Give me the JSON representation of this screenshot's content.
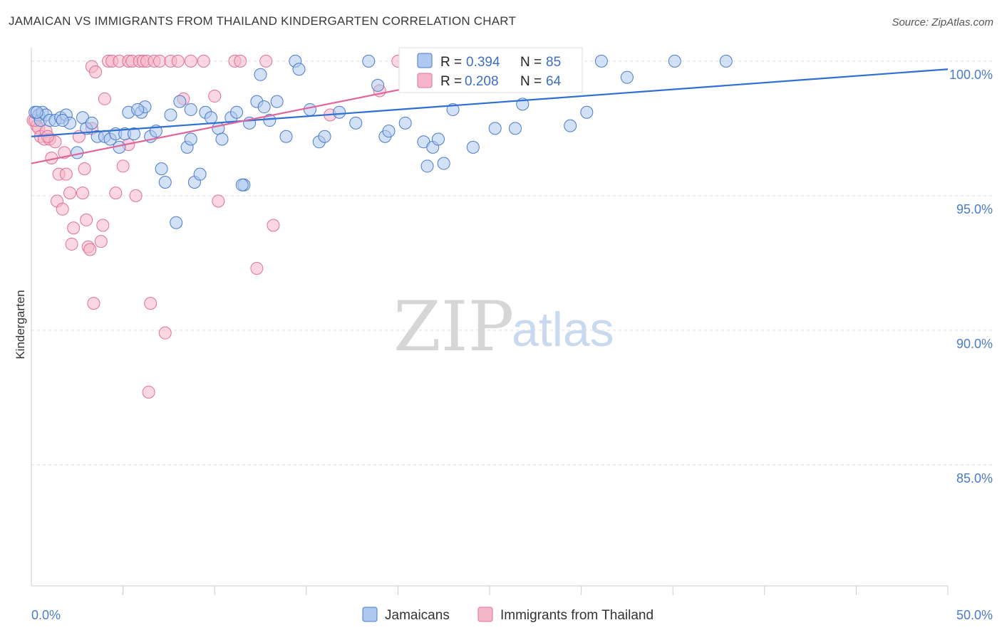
{
  "title": "JAMAICAN VS IMMIGRANTS FROM THAILAND KINDERGARTEN CORRELATION CHART",
  "source": "Source: ZipAtlas.com",
  "watermark": {
    "zip": "ZIP",
    "atlas": "atlas"
  },
  "colors": {
    "blue": "#4a7cc9",
    "blue_fill": "#aec8ef",
    "blue_line": "#2f6fd1",
    "pink": "#e0709a",
    "pink_fill": "#f6b6c9",
    "pink_line": "#e0659a",
    "grid": "#dddddd"
  },
  "legend": {
    "r_label": "R =",
    "n_label": "N =",
    "blue": {
      "r": "0.394",
      "n": "85"
    },
    "pink": {
      "r": "0.208",
      "n": "64"
    }
  },
  "chart_data": {
    "type": "scatter",
    "ylabel": "Kindergarten",
    "xlim": [
      0,
      50
    ],
    "ylim": [
      80.5,
      100.5
    ],
    "x_tick_labels": {
      "left": "0.0%",
      "right": "50.0%"
    },
    "y_ticks": [
      {
        "value": 100,
        "label": "100.0%"
      },
      {
        "value": 95,
        "label": "95.0%"
      },
      {
        "value": 90,
        "label": "90.0%"
      },
      {
        "value": 85,
        "label": "85.0%"
      }
    ],
    "grid": true,
    "series": [
      {
        "name": "Jamaicans",
        "color": "#4a7cc9",
        "trend": [
          [
            0,
            97.2
          ],
          [
            50,
            99.7
          ]
        ],
        "points": [
          [
            0.2,
            98.1
          ],
          [
            0.4,
            98.0
          ],
          [
            0.5,
            97.8
          ],
          [
            0.6,
            98.1
          ],
          [
            0.8,
            98.0
          ],
          [
            1.0,
            97.8
          ],
          [
            1.3,
            97.8
          ],
          [
            1.6,
            97.9
          ],
          [
            1.9,
            98.0
          ],
          [
            2.1,
            97.7
          ],
          [
            2.5,
            96.6
          ],
          [
            2.8,
            97.9
          ],
          [
            3.0,
            97.5
          ],
          [
            3.3,
            97.7
          ],
          [
            3.6,
            97.2
          ],
          [
            4.0,
            97.2
          ],
          [
            4.3,
            97.1
          ],
          [
            4.6,
            97.3
          ],
          [
            4.8,
            96.8
          ],
          [
            5.1,
            97.3
          ],
          [
            5.3,
            98.1
          ],
          [
            5.6,
            97.3
          ],
          [
            6.0,
            98.1
          ],
          [
            6.2,
            98.3
          ],
          [
            6.5,
            97.2
          ],
          [
            6.8,
            97.4
          ],
          [
            7.1,
            96.0
          ],
          [
            7.3,
            95.5
          ],
          [
            7.6,
            98.0
          ],
          [
            7.9,
            94.0
          ],
          [
            8.1,
            98.5
          ],
          [
            8.5,
            96.8
          ],
          [
            8.7,
            97.1
          ],
          [
            8.9,
            95.5
          ],
          [
            9.2,
            95.8
          ],
          [
            9.5,
            98.1
          ],
          [
            9.8,
            97.9
          ],
          [
            10.2,
            97.5
          ],
          [
            10.4,
            97.1
          ],
          [
            10.9,
            97.9
          ],
          [
            11.2,
            98.1
          ],
          [
            11.6,
            95.4
          ],
          [
            11.9,
            97.7
          ],
          [
            12.3,
            98.5
          ],
          [
            12.5,
            99.5
          ],
          [
            12.7,
            98.3
          ],
          [
            13.0,
            97.8
          ],
          [
            13.4,
            98.5
          ],
          [
            13.9,
            97.2
          ],
          [
            14.4,
            100.0
          ],
          [
            14.6,
            99.7
          ],
          [
            15.2,
            98.2
          ],
          [
            15.7,
            97.0
          ],
          [
            16.0,
            97.2
          ],
          [
            16.8,
            98.1
          ],
          [
            17.7,
            97.7
          ],
          [
            18.4,
            100.0
          ],
          [
            18.9,
            99.1
          ],
          [
            19.3,
            97.2
          ],
          [
            19.5,
            97.4
          ],
          [
            20.4,
            97.7
          ],
          [
            20.9,
            100.0
          ],
          [
            21.4,
            97.0
          ],
          [
            21.6,
            96.1
          ],
          [
            21.9,
            96.8
          ],
          [
            22.2,
            97.1
          ],
          [
            22.5,
            96.2
          ],
          [
            23.0,
            98.2
          ],
          [
            24.1,
            96.8
          ],
          [
            25.3,
            97.5
          ],
          [
            26.4,
            97.5
          ],
          [
            26.8,
            98.4
          ],
          [
            27.9,
            100.0
          ],
          [
            28.5,
            100.0
          ],
          [
            29.4,
            97.6
          ],
          [
            30.3,
            98.1
          ],
          [
            31.1,
            100.0
          ],
          [
            32.5,
            99.4
          ],
          [
            35.1,
            100.0
          ],
          [
            37.9,
            100.0
          ],
          [
            11.5,
            95.4
          ],
          [
            8.7,
            98.2
          ],
          [
            5.8,
            98.2
          ],
          [
            1.7,
            97.8
          ],
          [
            0.3,
            98.1
          ]
        ]
      },
      {
        "name": "Immigrants from Thailand",
        "color": "#e0709a",
        "trend": [
          [
            0,
            96.2
          ],
          [
            22,
            99.2
          ]
        ],
        "points": [
          [
            0.1,
            97.8
          ],
          [
            0.3,
            97.6
          ],
          [
            0.4,
            97.5
          ],
          [
            0.5,
            97.2
          ],
          [
            0.7,
            97.1
          ],
          [
            0.8,
            97.4
          ],
          [
            1.0,
            97.1
          ],
          [
            1.1,
            96.4
          ],
          [
            1.3,
            97.0
          ],
          [
            1.4,
            94.8
          ],
          [
            1.5,
            95.8
          ],
          [
            1.7,
            94.5
          ],
          [
            1.8,
            96.6
          ],
          [
            1.9,
            95.8
          ],
          [
            2.1,
            95.1
          ],
          [
            2.2,
            93.2
          ],
          [
            2.3,
            93.8
          ],
          [
            2.6,
            97.2
          ],
          [
            2.8,
            95.1
          ],
          [
            2.9,
            96.0
          ],
          [
            3.0,
            94.1
          ],
          [
            3.1,
            93.1
          ],
          [
            3.2,
            93.0
          ],
          [
            3.3,
            99.8
          ],
          [
            3.4,
            91.0
          ],
          [
            3.5,
            99.6
          ],
          [
            3.8,
            93.3
          ],
          [
            3.9,
            93.9
          ],
          [
            4.0,
            98.6
          ],
          [
            4.2,
            100.0
          ],
          [
            4.4,
            100.0
          ],
          [
            4.6,
            95.1
          ],
          [
            4.8,
            100.0
          ],
          [
            5.0,
            96.1
          ],
          [
            5.3,
            100.0
          ],
          [
            5.5,
            100.0
          ],
          [
            5.7,
            95.0
          ],
          [
            5.9,
            100.0
          ],
          [
            6.1,
            100.0
          ],
          [
            6.3,
            100.0
          ],
          [
            6.5,
            91.0
          ],
          [
            6.7,
            100.0
          ],
          [
            7.0,
            100.0
          ],
          [
            7.3,
            89.9
          ],
          [
            7.6,
            100.0
          ],
          [
            8.0,
            100.0
          ],
          [
            8.3,
            98.6
          ],
          [
            8.7,
            100.0
          ],
          [
            9.4,
            100.0
          ],
          [
            10.0,
            98.7
          ],
          [
            10.2,
            94.8
          ],
          [
            11.1,
            100.0
          ],
          [
            11.4,
            100.0
          ],
          [
            12.3,
            92.3
          ],
          [
            12.8,
            100.0
          ],
          [
            13.2,
            93.9
          ],
          [
            16.3,
            98.0
          ],
          [
            19.0,
            98.9
          ],
          [
            20.0,
            100.0
          ],
          [
            6.4,
            87.7
          ],
          [
            3.3,
            97.5
          ],
          [
            5.3,
            96.9
          ],
          [
            0.2,
            97.8
          ],
          [
            0.9,
            97.2
          ]
        ]
      }
    ]
  },
  "bottom_legend": [
    {
      "name": "Jamaicans"
    },
    {
      "name": "Immigrants from Thailand"
    }
  ]
}
